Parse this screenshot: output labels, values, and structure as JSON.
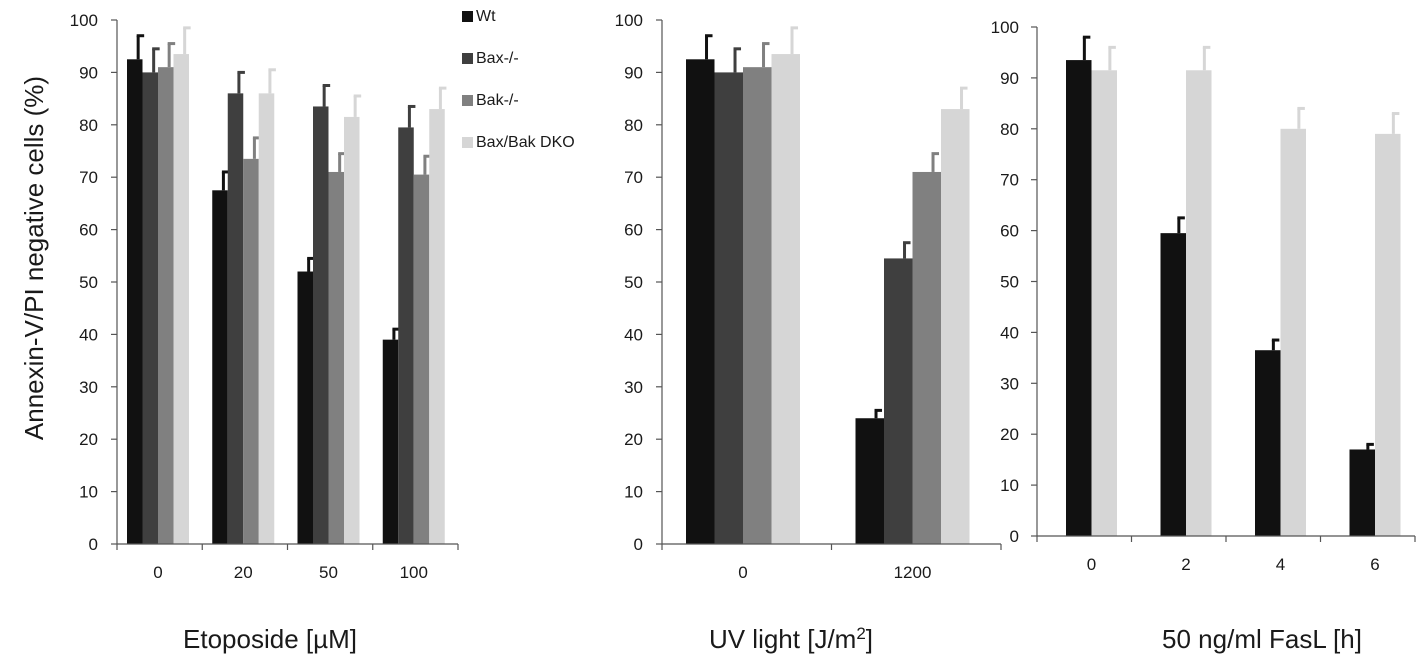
{
  "y_axis_title": "Annexin-V/PI negative cells (%)",
  "legend": [
    {
      "label": "Wt",
      "color": "#111111"
    },
    {
      "label": "Bax-/-",
      "color": "#3f3f3f"
    },
    {
      "label": "Bak-/-",
      "color": "#808080"
    },
    {
      "label": "Bax/Bak DKO",
      "color": "#d6d6d6"
    }
  ],
  "chart_data": [
    {
      "type": "bar",
      "xlabel": "Etoposide [µM]",
      "ylim": [
        0,
        100
      ],
      "yticks": [
        0,
        10,
        20,
        30,
        40,
        50,
        60,
        70,
        80,
        90,
        100
      ],
      "categories": [
        "0",
        "20",
        "50",
        "100"
      ],
      "series": [
        {
          "name": "Wt",
          "color": "#111111",
          "values": [
            92.5,
            67.5,
            52,
            39
          ],
          "errors": [
            4.5,
            3.5,
            2.5,
            2
          ]
        },
        {
          "name": "Bax-/-",
          "color": "#3f3f3f",
          "values": [
            90,
            86,
            83.5,
            79.5
          ],
          "errors": [
            4.5,
            4,
            4,
            4
          ]
        },
        {
          "name": "Bak-/-",
          "color": "#808080",
          "values": [
            91,
            73.5,
            71,
            70.5
          ],
          "errors": [
            4.5,
            4,
            3.5,
            3.5
          ]
        },
        {
          "name": "Bax/Bak DKO",
          "color": "#d6d6d6",
          "values": [
            93.5,
            86,
            81.5,
            83
          ],
          "errors": [
            5,
            4.5,
            4,
            4
          ]
        }
      ]
    },
    {
      "type": "bar",
      "xlabel": "UV light [J/m",
      "xlabel_sup": "2",
      "xlabel_end": "]",
      "ylim": [
        0,
        100
      ],
      "yticks": [
        0,
        10,
        20,
        30,
        40,
        50,
        60,
        70,
        80,
        90,
        100
      ],
      "categories": [
        "0",
        "1200"
      ],
      "series": [
        {
          "name": "Wt",
          "color": "#111111",
          "values": [
            92.5,
            24
          ],
          "errors": [
            4.5,
            1.5
          ]
        },
        {
          "name": "Bax-/-",
          "color": "#3f3f3f",
          "values": [
            90,
            54.5
          ],
          "errors": [
            4.5,
            3
          ]
        },
        {
          "name": "Bak-/-",
          "color": "#808080",
          "values": [
            91,
            71
          ],
          "errors": [
            4.5,
            3.5
          ]
        },
        {
          "name": "Bax/Bak DKO",
          "color": "#d6d6d6",
          "values": [
            93.5,
            83
          ],
          "errors": [
            5,
            4
          ]
        }
      ]
    },
    {
      "type": "bar",
      "xlabel": "50 ng/ml FasL [h]",
      "ylim": [
        0,
        100
      ],
      "yticks": [
        0,
        10,
        20,
        30,
        40,
        50,
        60,
        70,
        80,
        90,
        100
      ],
      "categories": [
        "0",
        "2",
        "4",
        "6"
      ],
      "series": [
        {
          "name": "Wt",
          "color": "#111111",
          "values": [
            93.5,
            59.5,
            36.5,
            17
          ],
          "errors": [
            4.5,
            3,
            2,
            1
          ]
        },
        {
          "name": "Bax/Bak DKO",
          "color": "#d6d6d6",
          "values": [
            91.5,
            91.5,
            80,
            79
          ],
          "errors": [
            4.5,
            4.5,
            4,
            4
          ]
        }
      ]
    }
  ]
}
